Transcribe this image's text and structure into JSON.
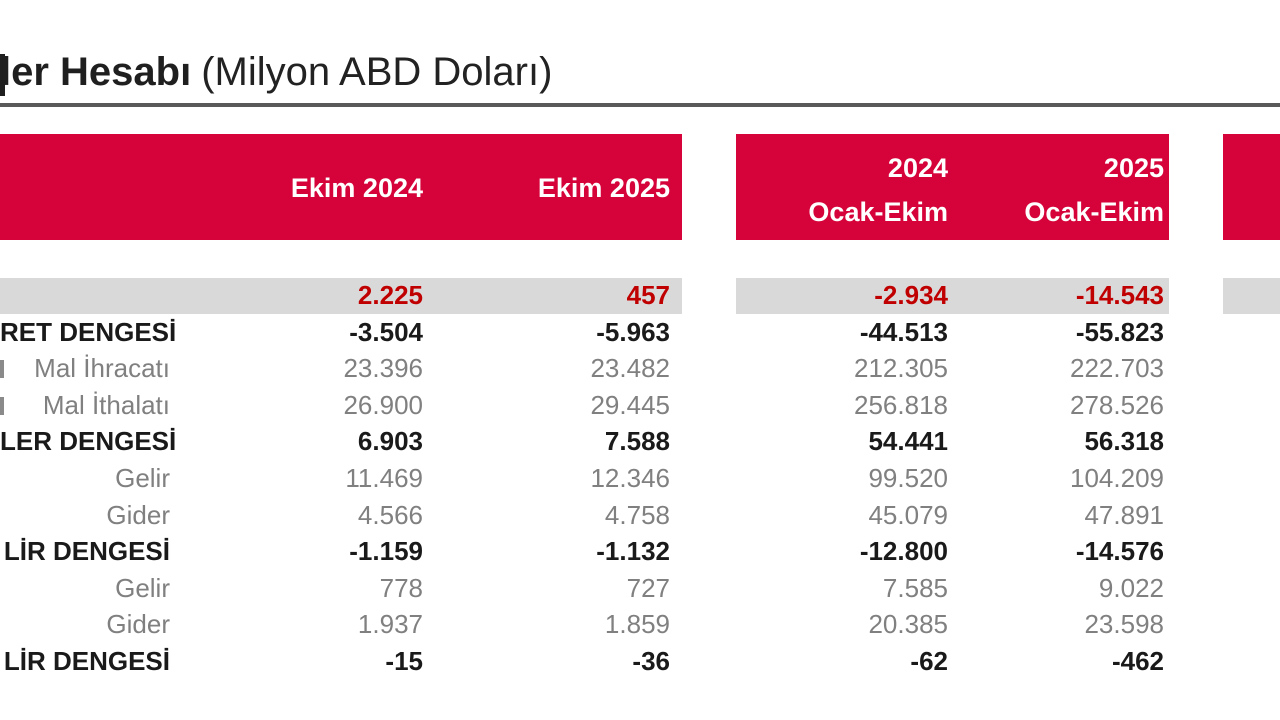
{
  "title": {
    "bold_fragment": "ler Hesabı",
    "regular_part": "(Milyon ABD Doları)"
  },
  "header": {
    "columns": [
      {
        "line1": "",
        "line2": "Ekim 2024"
      },
      {
        "line1": "",
        "line2": "Ekim 2025"
      },
      {
        "line1": "2024",
        "line2": "Ocak-Ekim"
      },
      {
        "line1": "2025",
        "line2": "Ocak-Ekim"
      }
    ]
  },
  "rows": [
    {
      "label": "",
      "style": "highlight",
      "values": [
        "2.225",
        "457",
        "-2.934",
        "-14.543"
      ]
    },
    {
      "label": "RET DENGESİ",
      "style": "bold",
      "values": [
        "-3.504",
        "-5.963",
        "-44.513",
        "-55.823"
      ]
    },
    {
      "label": "Mal İhracatı",
      "style": "plain",
      "values": [
        "23.396",
        "23.482",
        "212.305",
        "222.703"
      ]
    },
    {
      "label": "Mal İthalatı",
      "style": "plain",
      "values": [
        "26.900",
        "29.445",
        "256.818",
        "278.526"
      ]
    },
    {
      "label": "LER DENGESİ",
      "style": "bold",
      "values": [
        "6.903",
        "7.588",
        "54.441",
        "56.318"
      ]
    },
    {
      "label": "Gelir",
      "style": "plain",
      "values": [
        "11.469",
        "12.346",
        "99.520",
        "104.209"
      ]
    },
    {
      "label": "Gider",
      "style": "plain",
      "values": [
        "4.566",
        "4.758",
        "45.079",
        "47.891"
      ]
    },
    {
      "label": "LİR DENGESİ",
      "style": "bold",
      "values": [
        "-1.159",
        "-1.132",
        "-12.800",
        "-14.576"
      ]
    },
    {
      "label": "Gelir",
      "style": "plain",
      "values": [
        "778",
        "727",
        "7.585",
        "9.022"
      ]
    },
    {
      "label": "Gider",
      "style": "plain",
      "values": [
        "1.937",
        "1.859",
        "20.385",
        "23.598"
      ]
    },
    {
      "label": "LİR DENGESİ",
      "style": "bold",
      "values": [
        "-15",
        "-36",
        "-62",
        "-462"
      ]
    }
  ],
  "colors": {
    "header_red": "#D50339",
    "highlight_value_red": "#C00000",
    "band_gray": "#D9D9D9",
    "muted_text_gray": "#808080",
    "ink": "#1A1A1A",
    "title_rule_gray": "#595959"
  },
  "chart_data": {
    "type": "table",
    "title": "ler Hesabı (Milyon ABD Doları)",
    "columns": [
      "Ekim 2024",
      "Ekim 2025",
      "2024 Ocak-Ekim",
      "2025 Ocak-Ekim"
    ],
    "rows": [
      {
        "label": "",
        "values": [
          2225,
          457,
          -2934,
          -14543
        ]
      },
      {
        "label": "RET DENGESİ",
        "values": [
          -3504,
          -5963,
          -44513,
          -55823
        ]
      },
      {
        "label": "Mal İhracatı",
        "values": [
          23396,
          23482,
          212305,
          222703
        ]
      },
      {
        "label": "Mal İthalatı",
        "values": [
          26900,
          29445,
          256818,
          278526
        ]
      },
      {
        "label": "LER DENGESİ",
        "values": [
          6903,
          7588,
          54441,
          56318
        ]
      },
      {
        "label": "Gelir",
        "values": [
          11469,
          12346,
          99520,
          104209
        ]
      },
      {
        "label": "Gider",
        "values": [
          4566,
          4758,
          45079,
          47891
        ]
      },
      {
        "label": "LİR DENGESİ",
        "values": [
          -1159,
          -1132,
          -12800,
          -14576
        ]
      },
      {
        "label": "Gelir",
        "values": [
          778,
          727,
          7585,
          9022
        ]
      },
      {
        "label": "Gider",
        "values": [
          1937,
          1859,
          20385,
          23598
        ]
      },
      {
        "label": "LİR DENGESİ",
        "values": [
          -15,
          -36,
          -62,
          -462
        ]
      }
    ]
  }
}
